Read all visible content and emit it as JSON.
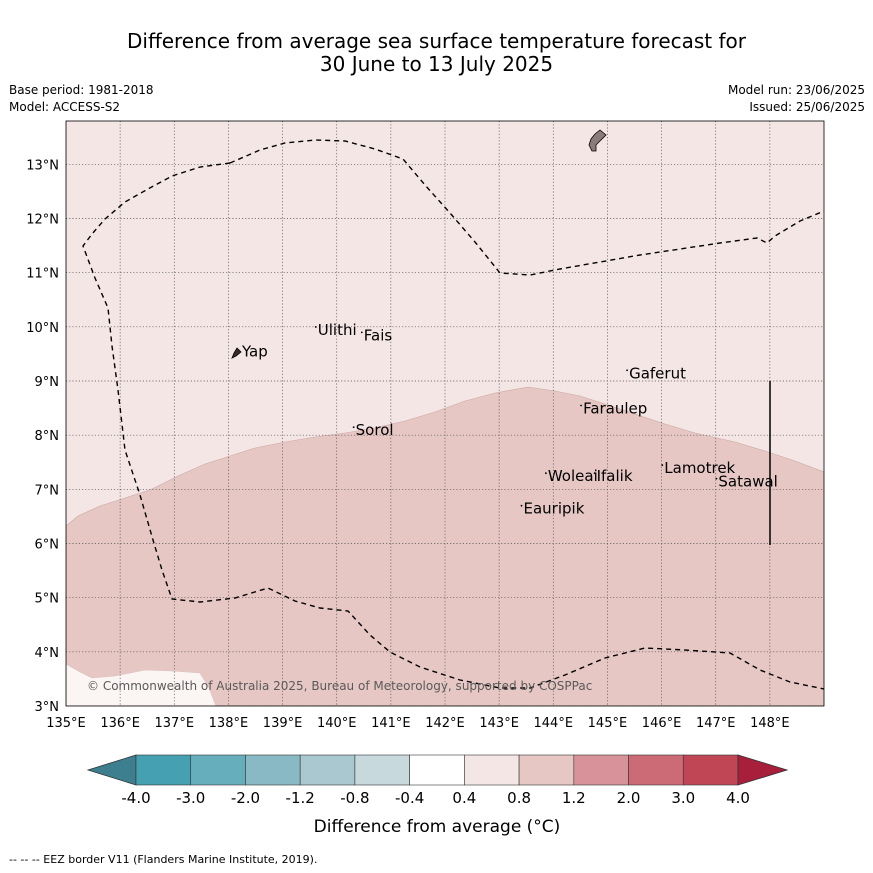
{
  "title": {
    "line1": "Difference from average sea surface temperature forecast for",
    "line2": "30 June to 13 July 2025"
  },
  "meta": {
    "base_period": "Base period: 1981-2018",
    "model": "Model: ACCESS-S2",
    "model_run": "Model run: 23/06/2025",
    "issued": "Issued: 25/06/2025"
  },
  "map": {
    "lon_range": [
      135,
      149
    ],
    "lat_range": [
      3,
      13.8
    ],
    "lon_ticks": [
      "135°E",
      "136°E",
      "137°E",
      "138°E",
      "139°E",
      "140°E",
      "141°E",
      "142°E",
      "143°E",
      "144°E",
      "145°E",
      "146°E",
      "147°E",
      "148°E"
    ],
    "lat_ticks": [
      "3°N",
      "4°N",
      "5°N",
      "6°N",
      "7°N",
      "8°N",
      "9°N",
      "10°N",
      "11°N",
      "12°N",
      "13°N"
    ],
    "fill_colors": {
      "class_0.4_0.8": "#f4e6e5",
      "class_0.8_1.2": "#e6c7c3",
      "class_-0.4_0.4": "#ffffff",
      "land": "#8c7b7b"
    },
    "places": [
      {
        "name": "Yap",
        "lon": 138.25,
        "lat": 9.45
      },
      {
        "name": "Ulithi",
        "lon": 139.65,
        "lat": 9.85
      },
      {
        "name": "Fais",
        "lon": 140.5,
        "lat": 9.75
      },
      {
        "name": "Sorol",
        "lon": 140.35,
        "lat": 8.0
      },
      {
        "name": "Gaferut",
        "lon": 145.4,
        "lat": 9.05
      },
      {
        "name": "Faraulep",
        "lon": 144.55,
        "lat": 8.4
      },
      {
        "name": "Woleai",
        "lon": 143.9,
        "lat": 7.15
      },
      {
        "name": "Ifalik",
        "lon": 144.8,
        "lat": 7.15
      },
      {
        "name": "Lamotrek",
        "lon": 146.05,
        "lat": 7.3
      },
      {
        "name": "Satawal",
        "lon": 147.05,
        "lat": 7.05
      },
      {
        "name": "Eauripik",
        "lon": 143.45,
        "lat": 6.55
      }
    ],
    "copyright": "© Commonwealth of Australia 2025, Bureau of Meteorology, supported by COSPPac"
  },
  "colorbar": {
    "colors": [
      "#3d7f8e",
      "#45a0b2",
      "#67aebd",
      "#89b9c4",
      "#a9c8cf",
      "#c8d9dd",
      "#ffffff",
      "#f4e6e5",
      "#e6c7c3",
      "#d8929a",
      "#cc6a75",
      "#c04656",
      "#a81f3c"
    ],
    "tick_labels": [
      "-4.0",
      "-3.0",
      "-2.0",
      "-1.2",
      "-0.8",
      "-0.4",
      "0.4",
      "0.8",
      "1.2",
      "2.0",
      "3.0",
      "4.0"
    ],
    "label": "Difference from average (°C)"
  },
  "legend": {
    "eez": "--  --  -- EEZ border V11 (Flanders Marine Institute, 2019)."
  }
}
